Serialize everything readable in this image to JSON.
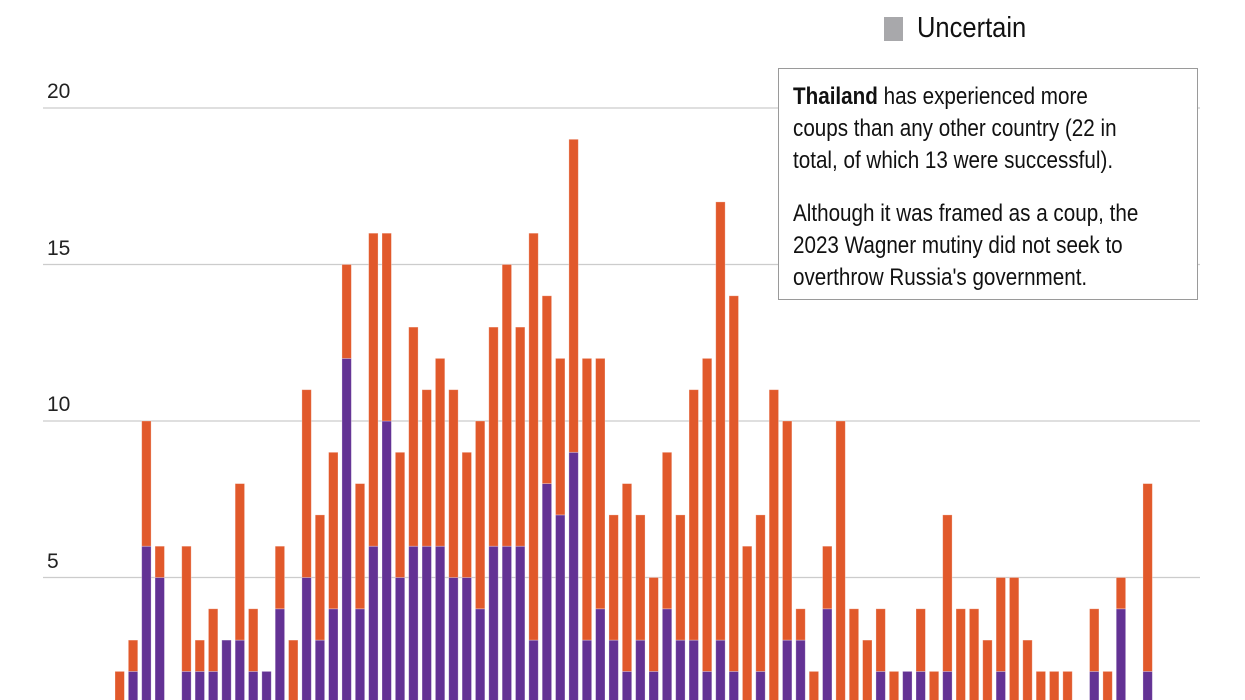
{
  "legend": [
    {
      "label": "Uncertain",
      "color": "#a8a8ab"
    }
  ],
  "annotation": {
    "highlight": "Thailand",
    "para1_lines": [
      " has experienced more",
      "coups than any other country (22 in",
      "total, of which 13 were successful)."
    ],
    "para2_lines": [
      "Although it was framed as a coup, the",
      "2023 Wagner mutiny did not seek to",
      "overthrow Russia's government."
    ]
  },
  "chart_data": {
    "type": "bar",
    "stacked": true,
    "grid": true,
    "yticks": [
      "5",
      "10",
      "15",
      "20"
    ],
    "ytick_values": [
      5,
      10,
      15,
      20
    ],
    "ylim": [
      0,
      20
    ],
    "series": [
      {
        "color": "#633294",
        "values": [
          0,
          2,
          6,
          5,
          0,
          2,
          2,
          2,
          3,
          3,
          2,
          2,
          4,
          0,
          5,
          3,
          4,
          12,
          4,
          6,
          10,
          5,
          6,
          6,
          6,
          5,
          5,
          4,
          6,
          6,
          6,
          3,
          8,
          7,
          9,
          3,
          4,
          3,
          2,
          3,
          2,
          4,
          3,
          3,
          2,
          3,
          2,
          0,
          2,
          0,
          3,
          3,
          0,
          4,
          0,
          0,
          0,
          2,
          0,
          2,
          2,
          0,
          2,
          0,
          0,
          0,
          2,
          0,
          0,
          0,
          0,
          0,
          0,
          2,
          0,
          4,
          0,
          2
        ]
      },
      {
        "color": "#e1592b",
        "values": [
          2,
          1,
          4,
          1,
          0,
          4,
          1,
          2,
          0,
          5,
          2,
          0,
          2,
          3,
          6,
          4,
          5,
          3,
          4,
          10,
          6,
          4,
          7,
          5,
          6,
          6,
          4,
          6,
          7,
          9,
          7,
          13,
          6,
          5,
          10,
          9,
          8,
          4,
          6,
          4,
          3,
          5,
          4,
          8,
          10,
          14,
          12,
          6,
          5,
          11,
          7,
          1,
          2,
          2,
          10,
          4,
          3,
          2,
          2,
          0,
          2,
          2,
          5,
          4,
          4,
          3,
          3,
          5,
          3,
          2,
          2,
          2,
          0,
          2,
          2,
          1,
          0,
          6
        ]
      }
    ]
  }
}
